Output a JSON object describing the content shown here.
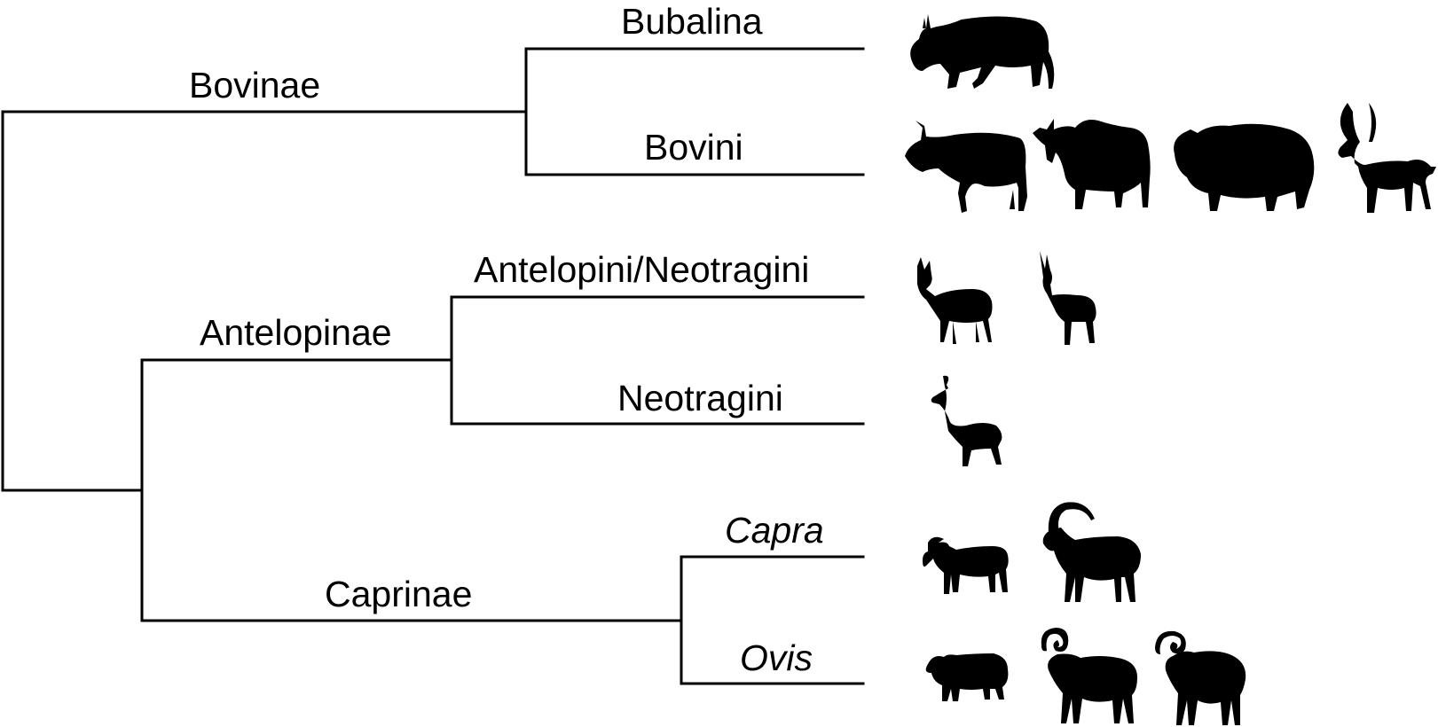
{
  "colors": {
    "line": "#000000",
    "silhouette": "#000000",
    "background": "#ffffff"
  },
  "labels": {
    "bubalina": "Bubalina",
    "bovini": "Bovini",
    "bovinae": "Bovinae",
    "antelopini_neotragini": "Antelopini/Neotragini",
    "neotragini": "Neotragini",
    "antelopinae": "Antelopinae",
    "capra": "Capra",
    "ovis": "Ovis",
    "caprinae": "Caprinae"
  },
  "silhouettes": {
    "bubalina": [
      "water-buffalo-icon"
    ],
    "bovini": [
      "cattle-icon",
      "zebu-icon",
      "yak-icon",
      "ankole-cattle-icon"
    ],
    "antelopini_neotragini": [
      "gazelle-icon",
      "springbok-icon"
    ],
    "neotragini": [
      "dwarf-antelope-icon"
    ],
    "capra": [
      "goat-icon",
      "ibex-icon"
    ],
    "ovis": [
      "sheep-icon",
      "bighorn-ram-icon",
      "mouflon-icon"
    ]
  }
}
